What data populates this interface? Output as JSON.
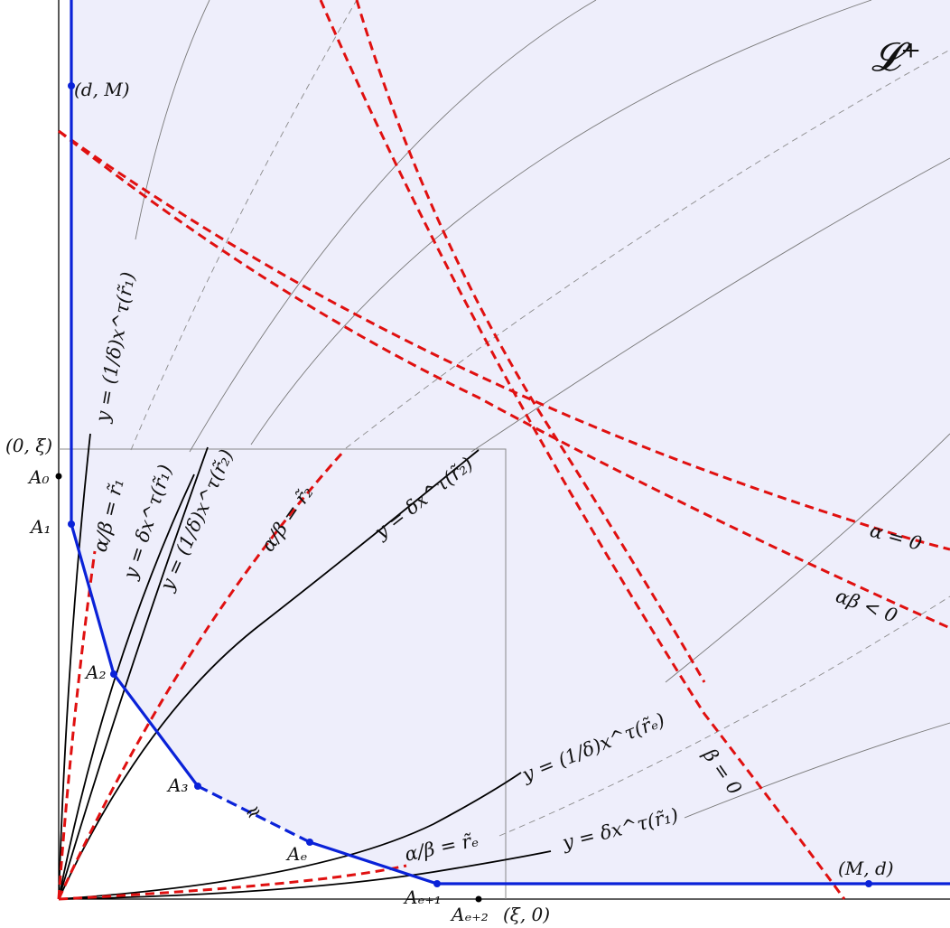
{
  "region_label": "𝓛⁺",
  "points": {
    "dM": "(d, M)",
    "zero_xi": "(0, ξ)",
    "A0": "A₀",
    "A1": "A₁",
    "A2": "A₂",
    "A3": "A₃",
    "Ae": "Aₑ",
    "Ae1": "Aₑ₊₁",
    "Ae2": "Aₑ₊₂",
    "xi_zero": "(ξ, 0)",
    "Md": "(M, d)"
  },
  "curve_labels": {
    "inv_delta_r1": "y = (1/δ)x^τ(r̃₁)",
    "ratio_r1": "α/β = r̃₁",
    "delta_r1_inner": "y = δx^τ(r̃₁)",
    "inv_delta_r2": "y = (1/δ)x^τ(r̃₂)",
    "ratio_r2": "α/β = r̃₂",
    "delta_r2": "y = δx^τ(r̃₂)",
    "inv_delta_re": "y = (1/δ)x^τ(r̃ₑ)",
    "ratio_re": "α/β = r̃ₑ",
    "delta_r1_outer": "y = δx^τ(r̃₁)"
  },
  "curve_labels_extra": {
    "alpha_zero": "α = 0",
    "alpha_beta_neg": "αβ < 0",
    "beta_zero": "β = 0",
    "approx": "≈"
  },
  "colors": {
    "region_fill": "#eeeefb",
    "blue": "#0a22d8",
    "red": "#e01010",
    "black": "#000000",
    "gray": "#777777"
  }
}
